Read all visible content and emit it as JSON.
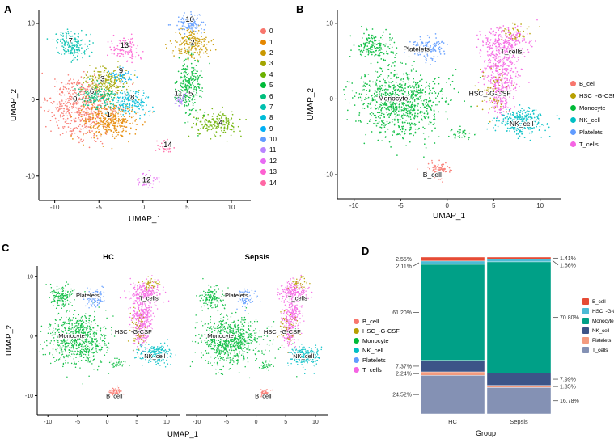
{
  "panels": {
    "A": {
      "letter": "A",
      "x_label": "UMAP_1",
      "y_label": "UMAP_2",
      "x_ticks": [
        -10,
        -5,
        0,
        5,
        10
      ],
      "y_ticks": [
        -10,
        0,
        10
      ],
      "legend": [
        {
          "label": "0",
          "color": "#F8766D"
        },
        {
          "label": "1",
          "color": "#E58700"
        },
        {
          "label": "2",
          "color": "#C99800"
        },
        {
          "label": "3",
          "color": "#A3A500"
        },
        {
          "label": "4",
          "color": "#6BB100"
        },
        {
          "label": "5",
          "color": "#00BA38"
        },
        {
          "label": "6",
          "color": "#00BF7D"
        },
        {
          "label": "7",
          "color": "#00C0AF"
        },
        {
          "label": "8",
          "color": "#00BCD8"
        },
        {
          "label": "9",
          "color": "#00B0F6"
        },
        {
          "label": "10",
          "color": "#619CFF"
        },
        {
          "label": "11",
          "color": "#B983FF"
        },
        {
          "label": "12",
          "color": "#E76BF3"
        },
        {
          "label": "13",
          "color": "#FD61D1"
        },
        {
          "label": "14",
          "color": "#FF67A4"
        }
      ]
    },
    "B": {
      "letter": "B",
      "x_label": "UMAP_1",
      "y_label": "UMAP_2",
      "x_ticks": [
        -10,
        -5,
        0,
        5,
        10
      ],
      "y_ticks": [
        -10,
        0,
        10
      ],
      "legend": [
        {
          "label": "B_cell",
          "color": "#F8766D"
        },
        {
          "label": "HSC_-G-CSF",
          "color": "#B79F00"
        },
        {
          "label": "Monocyte",
          "color": "#00BA38"
        },
        {
          "label": "NK_cell",
          "color": "#00BFC4"
        },
        {
          "label": "Platelets",
          "color": "#619CFF"
        },
        {
          "label": "T_cells",
          "color": "#F564E3"
        }
      ]
    },
    "C": {
      "letter": "C",
      "subtitles": [
        "HC",
        "Sepsis"
      ],
      "x_label": "UMAP_1",
      "y_label": "UMAP_2",
      "x_ticks": [
        -10,
        -5,
        0,
        5,
        10
      ],
      "y_ticks": [
        -10,
        0,
        10
      ],
      "legend": [
        {
          "label": "B_cell",
          "color": "#F8766D"
        },
        {
          "label": "HSC_-G-CSF",
          "color": "#B79F00"
        },
        {
          "label": "Monocyte",
          "color": "#00BA38"
        },
        {
          "label": "NK_cell",
          "color": "#00BFC4"
        },
        {
          "label": "Platelets",
          "color": "#619CFF"
        },
        {
          "label": "T_cells",
          "color": "#F564E3"
        }
      ]
    },
    "D": {
      "letter": "D",
      "legend": [
        {
          "label": "B_cell",
          "color": "#E64B35"
        },
        {
          "label": "HSC_-G-CSF",
          "color": "#4DBBD5"
        },
        {
          "label": "Monocyte",
          "color": "#00A087"
        },
        {
          "label": "NK_cell",
          "color": "#3C5488"
        },
        {
          "label": "Platelets",
          "color": "#F39B7F"
        },
        {
          "label": "T_cells",
          "color": "#8491B4"
        }
      ]
    }
  },
  "chart_data": [
    {
      "id": "A",
      "type": "scatter",
      "title": "",
      "xlabel": "UMAP_1",
      "ylabel": "UMAP_2",
      "xlim": [
        -11.8,
        12.2
      ],
      "ylim": [
        -13.2,
        11.8
      ],
      "clusters": [
        {
          "label": "0",
          "color": "#F8766D",
          "cx": -7.0,
          "cy": -1.0,
          "sx": 1.9,
          "sy": 2.0,
          "n": 550
        },
        {
          "label": "1",
          "color": "#E58700",
          "cx": -3.7,
          "cy": -2.9,
          "sx": 1.6,
          "sy": 1.1,
          "n": 330
        },
        {
          "label": "2",
          "color": "#C99800",
          "cx": 5.5,
          "cy": 7.3,
          "sx": 1.05,
          "sy": 1.0,
          "n": 210
        },
        {
          "label": "3",
          "color": "#A3A500",
          "cx": -4.2,
          "cy": 2.2,
          "sx": 1.25,
          "sy": 1.0,
          "n": 230
        },
        {
          "label": "4",
          "color": "#6BB100",
          "cx": 8.3,
          "cy": -3.1,
          "sx": 1.25,
          "sy": 0.8,
          "n": 190
        },
        {
          "label": "5",
          "color": "#00BA38",
          "cx": 5.3,
          "cy": 1.7,
          "sx": 0.65,
          "sy": 2.0,
          "n": 270
        },
        {
          "label": "6",
          "color": "#00BF7D",
          "cx": -5.2,
          "cy": 0.4,
          "sx": 1.1,
          "sy": 0.7,
          "n": 150
        },
        {
          "label": "7",
          "color": "#00C0AF",
          "cx": -8.0,
          "cy": 7.3,
          "sx": 1.0,
          "sy": 1.0,
          "n": 170
        },
        {
          "label": "8",
          "color": "#00BCD8",
          "cx": -1.5,
          "cy": -0.4,
          "sx": 0.95,
          "sy": 0.85,
          "n": 170
        },
        {
          "label": "9",
          "color": "#00B0F6",
          "cx": -2.4,
          "cy": 3.2,
          "sx": 0.5,
          "sy": 0.45,
          "n": 55
        },
        {
          "label": "10",
          "color": "#619CFF",
          "cx": 5.3,
          "cy": 10.1,
          "sx": 0.8,
          "sy": 0.65,
          "n": 110
        },
        {
          "label": "11",
          "color": "#B983FF",
          "cx": 4.2,
          "cy": 0.1,
          "sx": 0.4,
          "sy": 0.5,
          "n": 40
        },
        {
          "label": "12",
          "color": "#E76BF3",
          "cx": 0.4,
          "cy": -10.6,
          "sx": 0.55,
          "sy": 0.4,
          "n": 60
        },
        {
          "label": "13",
          "color": "#FD61D1",
          "cx": -2.1,
          "cy": 6.7,
          "sx": 0.85,
          "sy": 0.8,
          "n": 115
        },
        {
          "label": "14",
          "color": "#FF67A4",
          "cx": 2.7,
          "cy": -6.2,
          "sx": 0.5,
          "sy": 0.4,
          "n": 45
        }
      ],
      "labels": [
        {
          "text": "0",
          "x": -7.7,
          "y": -0.2
        },
        {
          "text": "1",
          "x": -3.9,
          "y": -2.3
        },
        {
          "text": "2",
          "x": 5.6,
          "y": 7.2
        },
        {
          "text": "3",
          "x": -4.6,
          "y": 2.4
        },
        {
          "text": "4",
          "x": 8.8,
          "y": -3.3
        },
        {
          "text": "5",
          "x": 5.4,
          "y": 0.5
        },
        {
          "text": "6",
          "x": -5.8,
          "y": 0.8
        },
        {
          "text": "7",
          "x": -8.2,
          "y": 7.4
        },
        {
          "text": "8",
          "x": -1.2,
          "y": 0.0
        },
        {
          "text": "9",
          "x": -2.5,
          "y": 3.5
        },
        {
          "text": "10",
          "x": 5.3,
          "y": 10.2
        },
        {
          "text": "11",
          "x": 4.0,
          "y": 0.5
        },
        {
          "text": "12",
          "x": 0.4,
          "y": -10.8
        },
        {
          "text": "13",
          "x": -2.1,
          "y": 6.8
        },
        {
          "text": "14",
          "x": 2.8,
          "y": -6.2
        }
      ]
    },
    {
      "id": "B",
      "type": "scatter",
      "title": "",
      "xlabel": "UMAP_1",
      "ylabel": "UMAP_2",
      "xlim": [
        -11.8,
        12.2
      ],
      "ylim": [
        -13.2,
        11.8
      ],
      "clusters": [
        {
          "name": "Monocyte",
          "color": "#00BA38",
          "parts": [
            {
              "cx": -5.0,
              "cy": -0.5,
              "sx": 2.3,
              "sy": 2.2,
              "n": 800
            },
            {
              "cx": -7.8,
              "cy": 6.8,
              "sx": 1.1,
              "sy": 1.0,
              "n": 170
            },
            {
              "cx": 1.6,
              "cy": -4.6,
              "sx": 0.5,
              "sy": 0.4,
              "n": 40
            },
            {
              "cx": -4.0,
              "cy": -0.5,
              "sx": 3.5,
              "sy": 3.0,
              "n": 50
            }
          ]
        },
        {
          "name": "Platelets",
          "color": "#619CFF",
          "parts": [
            {
              "cx": -2.0,
              "cy": 6.7,
              "sx": 0.9,
              "sy": 0.8,
              "n": 130
            }
          ]
        },
        {
          "name": "T_cells",
          "color": "#F564E3",
          "parts": [
            {
              "cx": 6.3,
              "cy": 7.3,
              "sx": 1.3,
              "sy": 1.0,
              "n": 260
            },
            {
              "cx": 5.9,
              "cy": 3.5,
              "sx": 0.9,
              "sy": 1.8,
              "n": 300
            },
            {
              "cx": 5.6,
              "cy": 0.0,
              "sx": 0.6,
              "sy": 1.2,
              "n": 120
            }
          ]
        },
        {
          "name": "HSC_-G-CSF",
          "color": "#B79F00",
          "parts": [
            {
              "cx": 5.1,
              "cy": 1.2,
              "sx": 0.8,
              "sy": 1.6,
              "n": 70
            },
            {
              "cx": 7.3,
              "cy": 8.8,
              "sx": 0.9,
              "sy": 0.5,
              "n": 45
            }
          ]
        },
        {
          "name": "NK_cell",
          "color": "#00BFC4",
          "parts": [
            {
              "cx": 8.0,
              "cy": -3.0,
              "sx": 1.3,
              "sy": 0.9,
              "n": 280
            }
          ]
        },
        {
          "name": "B_cell",
          "color": "#F8766D",
          "parts": [
            {
              "cx": -0.9,
              "cy": -9.3,
              "sx": 0.6,
              "sy": 0.5,
              "n": 90
            }
          ]
        }
      ],
      "labels": [
        {
          "text": "Platelets",
          "x": -3.3,
          "y": 6.3
        },
        {
          "text": "T_cells",
          "x": 6.9,
          "y": 6.0
        },
        {
          "text": "Monocyte",
          "x": -5.8,
          "y": -0.2
        },
        {
          "text": "HSC_-G-CSF",
          "x": 4.6,
          "y": 0.4
        },
        {
          "text": "NK_cell",
          "x": 8.0,
          "y": -3.6
        },
        {
          "text": "B_cell",
          "x": -1.6,
          "y": -10.3
        }
      ]
    },
    {
      "id": "C-HC",
      "type": "scatter",
      "title": "HC",
      "xlabel": "UMAP_1",
      "ylabel": "UMAP_2",
      "xlim": [
        -11.8,
        12.2
      ],
      "ylim": [
        -13.2,
        11.8
      ],
      "clusters": [
        {
          "name": "Monocyte",
          "color": "#00BA38",
          "parts": [
            {
              "cx": -5.0,
              "cy": -0.5,
              "sx": 2.2,
              "sy": 2.1,
              "n": 650
            },
            {
              "cx": -7.7,
              "cy": 6.7,
              "sx": 1.0,
              "sy": 0.95,
              "n": 140
            },
            {
              "cx": 1.6,
              "cy": -4.7,
              "sx": 0.5,
              "sy": 0.4,
              "n": 35
            },
            {
              "cx": -4.0,
              "cy": -0.5,
              "sx": 3.5,
              "sy": 2.8,
              "n": 40
            }
          ]
        },
        {
          "name": "Platelets",
          "color": "#619CFF",
          "parts": [
            {
              "cx": -2.1,
              "cy": 6.6,
              "sx": 0.85,
              "sy": 0.75,
              "n": 110
            }
          ]
        },
        {
          "name": "T_cells",
          "color": "#F564E3",
          "parts": [
            {
              "cx": 6.3,
              "cy": 7.3,
              "sx": 1.25,
              "sy": 0.95,
              "n": 230
            },
            {
              "cx": 5.9,
              "cy": 3.5,
              "sx": 0.85,
              "sy": 1.7,
              "n": 260
            },
            {
              "cx": 5.6,
              "cy": 0.1,
              "sx": 0.6,
              "sy": 1.1,
              "n": 100
            }
          ]
        },
        {
          "name": "HSC_-G-CSF",
          "color": "#B79F00",
          "parts": [
            {
              "cx": 5.1,
              "cy": 1.3,
              "sx": 0.75,
              "sy": 1.5,
              "n": 60
            },
            {
              "cx": 7.3,
              "cy": 8.8,
              "sx": 0.85,
              "sy": 0.5,
              "n": 40
            }
          ]
        },
        {
          "name": "NK_cell",
          "color": "#00BFC4",
          "parts": [
            {
              "cx": 8.0,
              "cy": -3.0,
              "sx": 1.25,
              "sy": 0.85,
              "n": 240
            }
          ]
        },
        {
          "name": "B_cell",
          "color": "#F8766D",
          "parts": [
            {
              "cx": 1.4,
              "cy": -9.5,
              "sx": 0.55,
              "sy": 0.45,
              "n": 75
            }
          ]
        }
      ],
      "labels": [
        {
          "text": "Platelets",
          "x": -3.3,
          "y": 6.5
        },
        {
          "text": "T_cells",
          "x": 7.0,
          "y": 6.0
        },
        {
          "text": "HSC_-G-CSF",
          "x": 4.4,
          "y": 0.4
        },
        {
          "text": "Monocyte",
          "x": -6.0,
          "y": -0.3
        },
        {
          "text": "NK_cell",
          "x": 8.0,
          "y": -3.7
        },
        {
          "text": "B_cell",
          "x": 1.2,
          "y": -10.4
        }
      ]
    },
    {
      "id": "C-Sepsis",
      "type": "scatter",
      "title": "Sepsis",
      "xlabel": "UMAP_1",
      "ylabel": "UMAP_2",
      "xlim": [
        -11.8,
        12.2
      ],
      "ylim": [
        -13.2,
        11.8
      ],
      "clusters": [
        {
          "name": "Monocyte",
          "color": "#00BA38",
          "parts": [
            {
              "cx": -4.7,
              "cy": -0.7,
              "sx": 2.3,
              "sy": 2.0,
              "n": 700
            },
            {
              "cx": -7.5,
              "cy": 6.5,
              "sx": 1.0,
              "sy": 0.9,
              "n": 120
            },
            {
              "cx": 1.7,
              "cy": -4.9,
              "sx": 0.5,
              "sy": 0.4,
              "n": 30
            },
            {
              "cx": -1.0,
              "cy": -1.0,
              "sx": 4.0,
              "sy": 2.6,
              "n": 60
            }
          ]
        },
        {
          "name": "Platelets",
          "color": "#619CFF",
          "parts": [
            {
              "cx": -2.0,
              "cy": 6.5,
              "sx": 0.8,
              "sy": 0.7,
              "n": 100
            }
          ]
        },
        {
          "name": "T_cells",
          "color": "#F564E3",
          "parts": [
            {
              "cx": 6.4,
              "cy": 7.4,
              "sx": 1.15,
              "sy": 0.9,
              "n": 200
            },
            {
              "cx": 6.0,
              "cy": 3.7,
              "sx": 0.8,
              "sy": 1.6,
              "n": 220
            },
            {
              "cx": 5.8,
              "cy": 0.3,
              "sx": 0.55,
              "sy": 1.0,
              "n": 80
            }
          ]
        },
        {
          "name": "HSC_-G-CSF",
          "color": "#B79F00",
          "parts": [
            {
              "cx": 5.2,
              "cy": 1.5,
              "sx": 0.8,
              "sy": 1.5,
              "n": 70
            },
            {
              "cx": 7.4,
              "cy": 8.9,
              "sx": 0.8,
              "sy": 0.5,
              "n": 35
            }
          ]
        },
        {
          "name": "NK_cell",
          "color": "#00BFC4",
          "parts": [
            {
              "cx": 8.1,
              "cy": -3.3,
              "sx": 1.2,
              "sy": 0.8,
              "n": 230
            }
          ]
        },
        {
          "name": "B_cell",
          "color": "#F8766D",
          "parts": [
            {
              "cx": 1.3,
              "cy": -9.6,
              "sx": 0.5,
              "sy": 0.45,
              "n": 60
            }
          ]
        }
      ],
      "labels": [
        {
          "text": "Platelets",
          "x": -3.3,
          "y": 6.5
        },
        {
          "text": "T_cells",
          "x": 7.0,
          "y": 6.0
        },
        {
          "text": "HSC_-G-CSF",
          "x": 4.4,
          "y": 0.4
        },
        {
          "text": "Monocyte",
          "x": -6.0,
          "y": -0.3
        },
        {
          "text": "NK_cell",
          "x": 8.0,
          "y": -3.7
        },
        {
          "text": "B_cell",
          "x": 1.2,
          "y": -10.4
        }
      ]
    },
    {
      "id": "D",
      "type": "bar",
      "title": "",
      "xlabel": "Group",
      "ylabel": "",
      "categories": [
        "HC",
        "Sepsis"
      ],
      "stacked": true,
      "ylim": [
        0,
        100
      ],
      "series": [
        {
          "name": "B_cell",
          "color": "#E64B35",
          "values": [
            2.55,
            1.41
          ]
        },
        {
          "name": "HSC_-G-CSF",
          "color": "#4DBBD5",
          "values": [
            2.11,
            1.66
          ]
        },
        {
          "name": "Monocyte",
          "color": "#00A087",
          "values": [
            61.2,
            70.8
          ]
        },
        {
          "name": "NK_cell",
          "color": "#3C5488",
          "values": [
            7.37,
            7.99
          ]
        },
        {
          "name": "Platelets",
          "color": "#F39B7F",
          "values": [
            2.24,
            1.35
          ]
        },
        {
          "name": "T_cells",
          "color": "#8491B4",
          "values": [
            24.52,
            16.78
          ]
        }
      ]
    }
  ]
}
